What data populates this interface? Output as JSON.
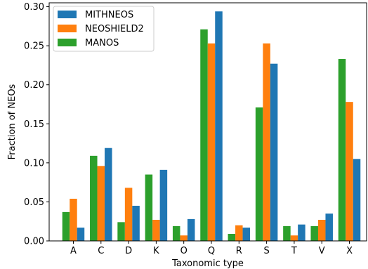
{
  "chart_data": {
    "type": "bar",
    "title": "",
    "xlabel": "Taxonomic type",
    "ylabel": "Fraction of NEOs",
    "ylim": [
      0,
      0.305
    ],
    "yticks": [
      "0.00",
      "0.05",
      "0.10",
      "0.15",
      "0.20",
      "0.25",
      "0.30"
    ],
    "categories": [
      "A",
      "C",
      "D",
      "K",
      "O",
      "Q",
      "R",
      "S",
      "T",
      "V",
      "X"
    ],
    "series": [
      {
        "name": "MANOS",
        "color": "#2ca02c",
        "values": [
          0.037,
          0.109,
          0.024,
          0.085,
          0.019,
          0.271,
          0.009,
          0.171,
          0.019,
          0.019,
          0.233
        ]
      },
      {
        "name": "NEOSHIELD2",
        "color": "#ff7f0e",
        "values": [
          0.054,
          0.096,
          0.068,
          0.027,
          0.007,
          0.253,
          0.02,
          0.253,
          0.007,
          0.027,
          0.178
        ]
      },
      {
        "name": "MITHNEOS",
        "color": "#1f77b4",
        "values": [
          0.017,
          0.119,
          0.045,
          0.091,
          0.028,
          0.294,
          0.017,
          0.227,
          0.021,
          0.035,
          0.105
        ]
      }
    ],
    "legend": {
      "placement": "top-left",
      "order": [
        "MITHNEOS",
        "NEOSHIELD2",
        "MANOS"
      ]
    },
    "grid": false
  }
}
